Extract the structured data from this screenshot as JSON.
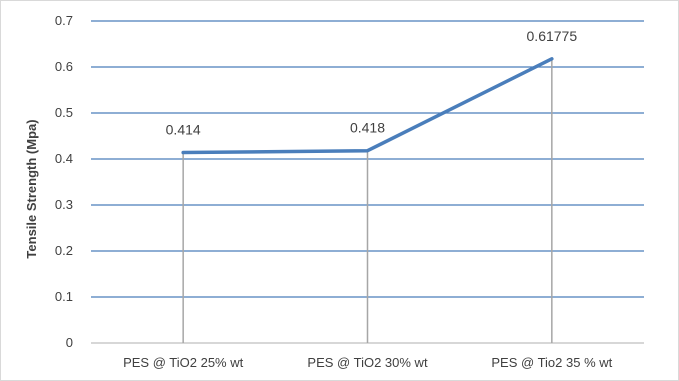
{
  "chart_data": {
    "type": "line",
    "title": "",
    "xlabel": "",
    "ylabel": "Tensile Strength  (Mpa)",
    "categories": [
      "PES @ TiO2  25% wt",
      "PES @ TiO2  30% wt",
      "PES @ Tio2 35 % wt"
    ],
    "series": [
      {
        "values": [
          0.414,
          0.418,
          0.61775
        ]
      }
    ],
    "data_labels": [
      "0.414",
      "0.418",
      "0.61775"
    ],
    "ylim": [
      0,
      0.7
    ],
    "yticks": [
      "0",
      "0.1",
      "0.2",
      "0.3",
      "0.4",
      "0.5",
      "0.6",
      "0.7"
    ],
    "grid": true,
    "drop_lines": true,
    "legend": "none",
    "colors": {
      "line": "#4a7ebb",
      "grid": "#4a7ebb",
      "drop_line": "#a6a6a6"
    }
  }
}
